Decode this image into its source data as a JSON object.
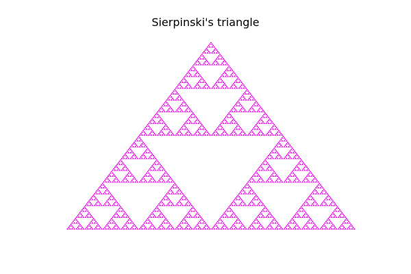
{
  "figure": {
    "title": "Sierpinski's triangle"
  },
  "fractal": {
    "name": "Sierpinski triangle",
    "marker_color": "#e600e6",
    "background_color": "#ffffff",
    "axes_visible": false
  }
}
